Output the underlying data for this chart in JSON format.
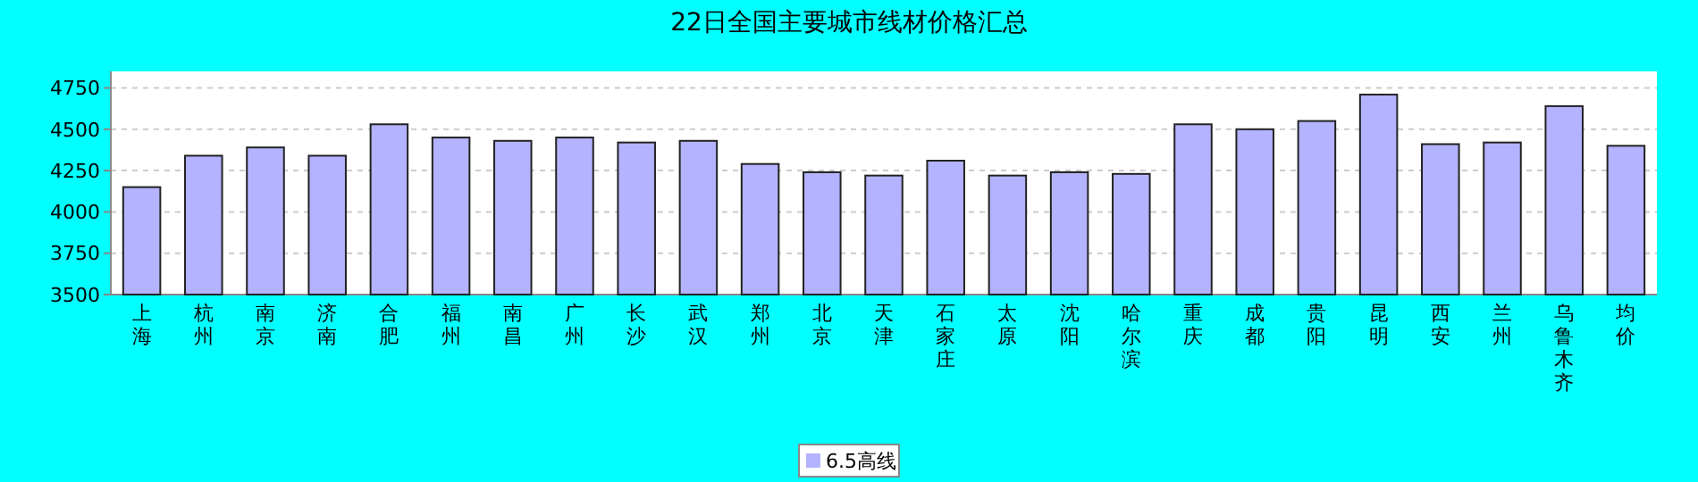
{
  "chart_data": {
    "type": "bar",
    "title": "22日全国主要城市线材价格汇总",
    "categories": [
      "上海",
      "杭州",
      "南京",
      "济南",
      "合肥",
      "福州",
      "南昌",
      "广州",
      "长沙",
      "武汉",
      "郑州",
      "北京",
      "天津",
      "石家庄",
      "太原",
      "沈阳",
      "哈尔滨",
      "重庆",
      "成都",
      "贵阳",
      "昆明",
      "西安",
      "兰州",
      "乌鲁木齐",
      "均价"
    ],
    "series": [
      {
        "name": "6.5高线",
        "color": "#b3b3ff",
        "values": [
          4150,
          4340,
          4390,
          4340,
          4530,
          4450,
          4430,
          4450,
          4420,
          4430,
          4290,
          4240,
          4220,
          4310,
          4220,
          4240,
          4230,
          4530,
          4500,
          4550,
          4710,
          4410,
          4420,
          4640,
          4400
        ]
      }
    ],
    "ylim": [
      3500,
      4850
    ],
    "yticks": [
      3500,
      3750,
      4000,
      4250,
      4500,
      4750
    ],
    "grid": "y",
    "legend": "bottom"
  }
}
